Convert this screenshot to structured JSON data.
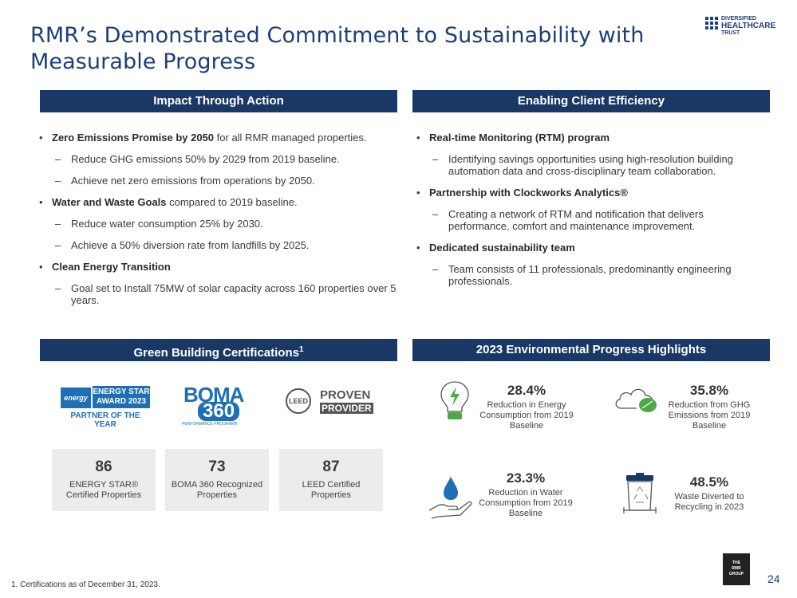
{
  "title": "RMR’s Demonstrated Commitment to Sustainability with Measurable Progress",
  "logo": {
    "line1": "DIVERSIFIED",
    "line2": "HEALTHCARE",
    "line3": "TRUST"
  },
  "impact": {
    "header": "Impact Through Action",
    "b1_bold": "Zero Emissions Promise by 2050",
    "b1_rest": " for all RMR managed properties.",
    "b1_sub1": "Reduce GHG emissions 50% by 2029 from 2019 baseline.",
    "b1_sub2": "Achieve net zero emissions from operations by 2050.",
    "b2_bold": "Water and Waste Goals",
    "b2_rest": " compared to 2019 baseline.",
    "b2_sub1": "Reduce water consumption 25% by 2030.",
    "b2_sub2": "Achieve a 50% diversion rate from landfills by 2025.",
    "b3_bold": "Clean Energy Transition",
    "b3_sub1": "Goal set to Install 75MW of solar capacity across 160 properties over 5 years."
  },
  "efficiency": {
    "header": "Enabling Client Efficiency",
    "b1_bold": "Real-time Monitoring (RTM) program",
    "b1_sub1": "Identifying savings opportunities using high-resolution building automation data and cross-disciplinary team collaboration.",
    "b2_bold": "Partnership with Clockworks Analytics®",
    "b2_sub1": "Creating a network of RTM and notification that delivers performance, comfort and maintenance improvement.",
    "b3_bold": "Dedicated sustainability team",
    "b3_sub1": "Team consists of 11 professionals, predominantly engineering professionals."
  },
  "certifications": {
    "header": "Green Building Certifications",
    "header_sup": "1",
    "energy_star_logo": {
      "line1": "ENERGY STAR",
      "line2": "AWARD 2023",
      "line3": "PARTNER OF THE YEAR",
      "mark": "energy"
    },
    "boma_logo": {
      "line1": "BOMA",
      "line2": "360",
      "line3": "PERFORMANCE PROGRAM®"
    },
    "leed_logo": {
      "badge": "LEED",
      "line1": "PROVEN",
      "line2": "PROVIDER"
    },
    "boxes": [
      {
        "value": "86",
        "label": "ENERGY STAR® Certified Properties"
      },
      {
        "value": "73",
        "label": "BOMA 360 Recognized Properties"
      },
      {
        "value": "87",
        "label": "LEED Certified Properties"
      }
    ]
  },
  "highlights": {
    "header": "2023 Environmental Progress Highlights",
    "items": [
      {
        "value": "28.4%",
        "label": "Reduction in Energy Consumption from 2019 Baseline",
        "icon": "lightbulb-icon"
      },
      {
        "value": "35.8%",
        "label": "Reduction from GHG Emissions from 2019 Baseline",
        "icon": "cloud-leaf-icon"
      },
      {
        "value": "23.3%",
        "label": "Reduction in Water Consumption  from 2019 Baseline",
        "icon": "water-drop-hand-icon"
      },
      {
        "value": "48.5%",
        "label": "Waste Diverted to Recycling in 2023",
        "icon": "recycle-bin-icon"
      }
    ]
  },
  "footnote": "1.   Certifications as of December 31, 2023.",
  "rmr_logo": {
    "line1": "THE",
    "line2": "RMR",
    "line3": "GROUP"
  },
  "page_number": "24",
  "colors": {
    "navy": "#1a3866",
    "green": "#4fa848",
    "blue": "#1f6fb5"
  }
}
